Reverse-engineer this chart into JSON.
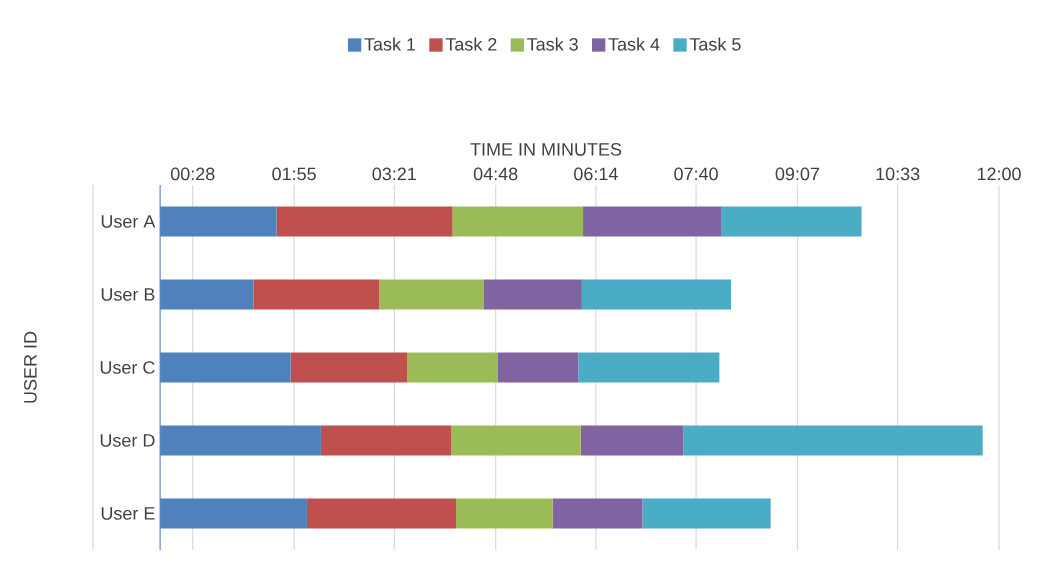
{
  "chart_data": {
    "type": "bar",
    "orientation": "horizontal",
    "stacked": true,
    "xlabel": "TIME IN MINUTES",
    "ylabel": "USER ID",
    "categories": [
      "User A",
      "User B",
      "User C",
      "User D",
      "User E"
    ],
    "series": [
      {
        "name": "Task 1",
        "color": "#4f81bd",
        "values": [
          100,
          80,
          112,
          138,
          126
        ]
      },
      {
        "name": "Task 2",
        "color": "#c0504d",
        "values": [
          151,
          108,
          100,
          112,
          128
        ]
      },
      {
        "name": "Task 3",
        "color": "#9bbb59",
        "values": [
          112,
          90,
          78,
          111,
          83
        ]
      },
      {
        "name": "Task 4",
        "color": "#8064a2",
        "values": [
          119,
          84,
          69,
          88,
          77
        ]
      },
      {
        "name": "Task 5",
        "color": "#4bacc6",
        "values": [
          120,
          128,
          121,
          257,
          110
        ]
      }
    ],
    "xlim": [
      -57.6,
      720
    ],
    "xticks": [
      {
        "value": -57.6,
        "label": null
      },
      {
        "value": 28,
        "label": "00:28"
      },
      {
        "value": 115,
        "label": "01:55"
      },
      {
        "value": 201,
        "label": "03:21"
      },
      {
        "value": 288,
        "label": "04:48"
      },
      {
        "value": 374,
        "label": "06:14"
      },
      {
        "value": 460,
        "label": "07:40"
      },
      {
        "value": 547,
        "label": "09:07"
      },
      {
        "value": 633,
        "label": "10:33"
      },
      {
        "value": 720,
        "label": "12:00"
      }
    ],
    "grid": "x",
    "legend": "top"
  }
}
